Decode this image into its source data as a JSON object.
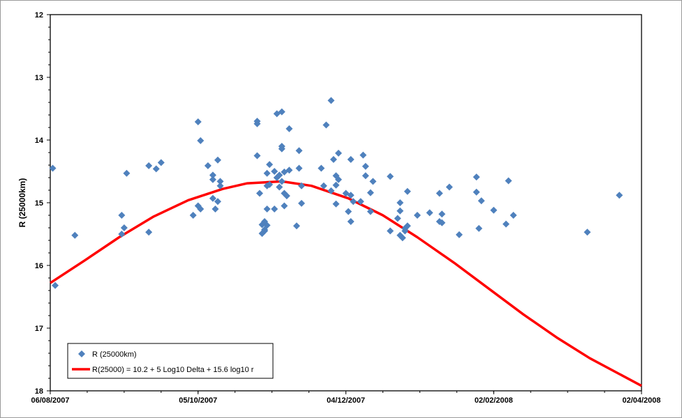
{
  "chart_data": {
    "type": "scatter",
    "ylabel": "R (25000km)",
    "xlabel": "",
    "ylim": [
      12,
      18
    ],
    "y_inverted": true,
    "yticks": [
      12,
      13,
      14,
      15,
      16,
      17,
      18
    ],
    "xlim": [
      "2007-08-06",
      "2008-04-02"
    ],
    "xticks": [
      "06/08/2007",
      "05/10/2007",
      "04/12/2007",
      "02/02/2008",
      "02/04/2008"
    ],
    "legend": {
      "position": "bottom-left",
      "entries": [
        "R (25000km)",
        "R(25000) = 10.2 + 5 Log10 Delta + 15.6 log10 r"
      ]
    },
    "colors": {
      "points": "#4f81bd",
      "curve": "#ff0000"
    },
    "series": [
      {
        "name": "R (25000km)",
        "kind": "scatter",
        "points": [
          [
            "2007-08-07",
            14.45
          ],
          [
            "2007-08-08",
            16.32
          ],
          [
            "2007-08-16",
            15.52
          ],
          [
            "2007-09-04",
            15.2
          ],
          [
            "2007-09-04",
            15.5
          ],
          [
            "2007-09-05",
            15.4
          ],
          [
            "2007-09-06",
            14.53
          ],
          [
            "2007-09-15",
            15.47
          ],
          [
            "2007-09-15",
            14.41
          ],
          [
            "2007-09-18",
            14.46
          ],
          [
            "2007-09-20",
            14.36
          ],
          [
            "2007-10-03",
            15.2
          ],
          [
            "2007-10-05",
            15.05
          ],
          [
            "2007-10-05",
            13.71
          ],
          [
            "2007-10-06",
            14.01
          ],
          [
            "2007-10-06",
            15.1
          ],
          [
            "2007-10-09",
            14.41
          ],
          [
            "2007-10-11",
            14.56
          ],
          [
            "2007-10-11",
            14.63
          ],
          [
            "2007-10-11",
            14.93
          ],
          [
            "2007-10-12",
            15.1
          ],
          [
            "2007-10-13",
            14.32
          ],
          [
            "2007-10-13",
            14.98
          ],
          [
            "2007-10-14",
            14.66
          ],
          [
            "2007-10-14",
            14.73
          ],
          [
            "2007-10-29",
            13.7
          ],
          [
            "2007-10-29",
            13.74
          ],
          [
            "2007-10-29",
            14.25
          ],
          [
            "2007-10-30",
            14.85
          ],
          [
            "2007-10-31",
            15.49
          ],
          [
            "2007-10-31",
            15.35
          ],
          [
            "2007-11-01",
            15.45
          ],
          [
            "2007-11-01",
            15.3
          ],
          [
            "2007-11-01",
            15.43
          ],
          [
            "2007-11-02",
            15.1
          ],
          [
            "2007-11-02",
            14.73
          ],
          [
            "2007-11-02",
            14.53
          ],
          [
            "2007-11-02",
            15.36
          ],
          [
            "2007-11-03",
            14.39
          ],
          [
            "2007-11-03",
            14.71
          ],
          [
            "2007-11-05",
            15.1
          ],
          [
            "2007-11-05",
            14.5
          ],
          [
            "2007-11-06",
            13.58
          ],
          [
            "2007-11-06",
            14.6
          ],
          [
            "2007-11-07",
            14.75
          ],
          [
            "2007-11-07",
            14.56
          ],
          [
            "2007-11-08",
            14.1
          ],
          [
            "2007-11-08",
            14.14
          ],
          [
            "2007-11-08",
            13.55
          ],
          [
            "2007-11-08",
            14.66
          ],
          [
            "2007-11-09",
            15.05
          ],
          [
            "2007-11-09",
            14.85
          ],
          [
            "2007-11-09",
            14.51
          ],
          [
            "2007-11-10",
            14.89
          ],
          [
            "2007-11-11",
            14.48
          ],
          [
            "2007-11-11",
            13.82
          ],
          [
            "2007-11-14",
            15.37
          ],
          [
            "2007-11-15",
            14.17
          ],
          [
            "2007-11-15",
            14.45
          ],
          [
            "2007-11-16",
            15.01
          ],
          [
            "2007-11-16",
            14.73
          ],
          [
            "2007-11-24",
            14.45
          ],
          [
            "2007-11-25",
            14.73
          ],
          [
            "2007-11-26",
            13.76
          ],
          [
            "2007-11-28",
            13.37
          ],
          [
            "2007-11-28",
            14.81
          ],
          [
            "2007-11-29",
            14.31
          ],
          [
            "2007-11-30",
            14.72
          ],
          [
            "2007-11-30",
            15.02
          ],
          [
            "2007-11-30",
            14.57
          ],
          [
            "2007-12-01",
            14.21
          ],
          [
            "2007-12-01",
            14.63
          ],
          [
            "2007-12-04",
            14.85
          ],
          [
            "2007-12-05",
            15.14
          ],
          [
            "2007-12-06",
            15.3
          ],
          [
            "2007-12-06",
            14.31
          ],
          [
            "2007-12-06",
            14.88
          ],
          [
            "2007-12-07",
            14.98
          ],
          [
            "2007-12-10",
            14.98
          ],
          [
            "2007-12-11",
            14.24
          ],
          [
            "2007-12-12",
            14.42
          ],
          [
            "2007-12-12",
            14.57
          ],
          [
            "2007-12-14",
            15.14
          ],
          [
            "2007-12-14",
            14.84
          ],
          [
            "2007-12-15",
            14.66
          ],
          [
            "2007-12-22",
            15.45
          ],
          [
            "2007-12-22",
            14.58
          ],
          [
            "2007-12-25",
            15.25
          ],
          [
            "2007-12-26",
            15.0
          ],
          [
            "2007-12-26",
            15.13
          ],
          [
            "2007-12-26",
            15.52
          ],
          [
            "2007-12-27",
            15.56
          ],
          [
            "2007-12-28",
            15.41
          ],
          [
            "2007-12-28",
            15.45
          ],
          [
            "2007-12-29",
            14.82
          ],
          [
            "2007-12-29",
            15.37
          ],
          [
            "2008-01-02",
            15.2
          ],
          [
            "2008-01-07",
            15.16
          ],
          [
            "2008-01-11",
            14.85
          ],
          [
            "2008-01-11",
            15.3
          ],
          [
            "2008-01-12",
            15.18
          ],
          [
            "2008-01-12",
            15.32
          ],
          [
            "2008-01-15",
            14.75
          ],
          [
            "2008-01-19",
            15.51
          ],
          [
            "2008-01-26",
            14.59
          ],
          [
            "2008-01-26",
            14.83
          ],
          [
            "2008-01-27",
            15.41
          ],
          [
            "2008-01-28",
            14.97
          ],
          [
            "2008-02-02",
            15.12
          ],
          [
            "2008-02-07",
            15.34
          ],
          [
            "2008-02-08",
            14.65
          ],
          [
            "2008-02-10",
            15.2
          ],
          [
            "2008-03-11",
            15.47
          ],
          [
            "2008-03-24",
            14.88
          ]
        ]
      },
      {
        "name": "R(25000) = 10.2 + 5 Log10 Delta + 15.6 log10 r",
        "kind": "line",
        "points": [
          [
            "2007-08-06",
            16.28
          ],
          [
            "2007-08-20",
            15.92
          ],
          [
            "2007-09-03",
            15.55
          ],
          [
            "2007-09-17",
            15.22
          ],
          [
            "2007-10-01",
            14.96
          ],
          [
            "2007-10-15",
            14.78
          ],
          [
            "2007-10-25",
            14.69
          ],
          [
            "2007-11-08",
            14.66
          ],
          [
            "2007-11-20",
            14.73
          ],
          [
            "2007-12-05",
            14.93
          ],
          [
            "2007-12-19",
            15.2
          ],
          [
            "2008-01-02",
            15.55
          ],
          [
            "2008-01-17",
            15.96
          ],
          [
            "2008-01-31",
            16.37
          ],
          [
            "2008-02-14",
            16.78
          ],
          [
            "2008-02-28",
            17.16
          ],
          [
            "2008-03-12",
            17.48
          ],
          [
            "2008-04-02",
            17.92
          ]
        ]
      }
    ]
  }
}
